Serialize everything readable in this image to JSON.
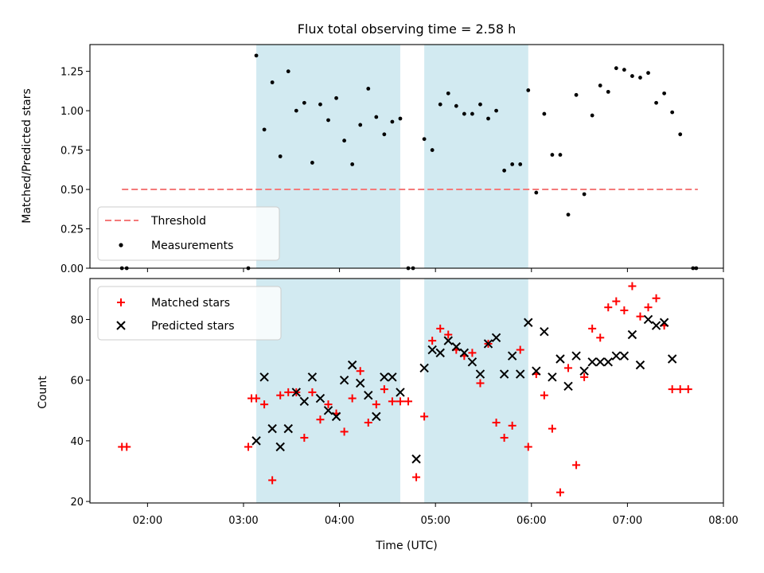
{
  "chart_data": [
    {
      "type": "scatter",
      "title": "Flux total observing time = 2.58 h",
      "xlabel": "",
      "ylabel": "Matched/Predicted stars",
      "xlim": [
        "01:24",
        "08:00"
      ],
      "ylim": [
        0,
        1.42
      ],
      "yticks": [
        0.0,
        0.25,
        0.5,
        0.75,
        1.0,
        1.25
      ],
      "ytick_labels": [
        "0.00",
        "0.25",
        "0.50",
        "0.75",
        "1.00",
        "1.25"
      ],
      "legend_position": "lower-left",
      "shaded_intervals": [
        [
          "03:08",
          "04:38"
        ],
        [
          "04:53",
          "05:58"
        ]
      ],
      "threshold": {
        "name": "Threshold",
        "y": 0.5,
        "x_range": [
          "01:44",
          "07:44"
        ],
        "color": "#f47a7a",
        "style": "dashed"
      },
      "series": [
        {
          "name": "Measurements",
          "color": "#000000",
          "marker": "dot",
          "points": [
            [
              "01:44",
              0.0
            ],
            [
              "01:47",
              0.0
            ],
            [
              "03:03",
              0.0
            ],
            [
              "03:08",
              1.35
            ],
            [
              "03:13",
              0.88
            ],
            [
              "03:18",
              1.18
            ],
            [
              "03:23",
              0.71
            ],
            [
              "03:28",
              1.25
            ],
            [
              "03:33",
              1.0
            ],
            [
              "03:38",
              1.05
            ],
            [
              "03:43",
              0.67
            ],
            [
              "03:48",
              1.04
            ],
            [
              "03:53",
              0.94
            ],
            [
              "03:58",
              1.08
            ],
            [
              "04:03",
              0.81
            ],
            [
              "04:08",
              0.66
            ],
            [
              "04:13",
              0.91
            ],
            [
              "04:18",
              1.14
            ],
            [
              "04:23",
              0.96
            ],
            [
              "04:28",
              0.85
            ],
            [
              "04:33",
              0.93
            ],
            [
              "04:38",
              0.95
            ],
            [
              "04:43",
              0.0
            ],
            [
              "04:46",
              0.0
            ],
            [
              "04:53",
              0.82
            ],
            [
              "04:58",
              0.75
            ],
            [
              "05:03",
              1.04
            ],
            [
              "05:08",
              1.11
            ],
            [
              "05:13",
              1.03
            ],
            [
              "05:18",
              0.98
            ],
            [
              "05:23",
              0.98
            ],
            [
              "05:28",
              1.04
            ],
            [
              "05:33",
              0.95
            ],
            [
              "05:38",
              1.0
            ],
            [
              "05:43",
              0.62
            ],
            [
              "05:48",
              0.66
            ],
            [
              "05:53",
              0.66
            ],
            [
              "05:58",
              1.13
            ],
            [
              "06:03",
              0.48
            ],
            [
              "06:08",
              0.98
            ],
            [
              "06:13",
              0.72
            ],
            [
              "06:18",
              0.72
            ],
            [
              "06:23",
              0.34
            ],
            [
              "06:28",
              1.1
            ],
            [
              "06:33",
              0.47
            ],
            [
              "06:38",
              0.97
            ],
            [
              "06:43",
              1.16
            ],
            [
              "06:48",
              1.12
            ],
            [
              "06:53",
              1.27
            ],
            [
              "06:58",
              1.26
            ],
            [
              "07:03",
              1.22
            ],
            [
              "07:08",
              1.21
            ],
            [
              "07:13",
              1.24
            ],
            [
              "07:18",
              1.05
            ],
            [
              "07:23",
              1.11
            ],
            [
              "07:28",
              0.99
            ],
            [
              "07:33",
              0.85
            ],
            [
              "07:41",
              0.0
            ],
            [
              "07:43",
              0.0
            ]
          ]
        }
      ]
    },
    {
      "type": "scatter",
      "title": "",
      "xlabel": "Time (UTC)",
      "ylabel": "Count",
      "xlim": [
        "01:24",
        "08:00"
      ],
      "ylim": [
        19.5,
        93.5
      ],
      "yticks": [
        20,
        40,
        60,
        80
      ],
      "ytick_labels": [
        "20",
        "40",
        "60",
        "80"
      ],
      "xticks": [
        "02:00",
        "03:00",
        "04:00",
        "05:00",
        "06:00",
        "07:00",
        "08:00"
      ],
      "xtick_labels": [
        "02:00",
        "03:00",
        "04:00",
        "05:00",
        "06:00",
        "07:00",
        "08:00"
      ],
      "legend_position": "upper-left",
      "shaded_intervals": [
        [
          "03:08",
          "04:38"
        ],
        [
          "04:53",
          "05:58"
        ]
      ],
      "series": [
        {
          "name": "Matched stars",
          "color": "#ff0000",
          "marker": "plus",
          "points": [
            [
              "01:44",
              38
            ],
            [
              "01:47",
              38
            ],
            [
              "03:03",
              38
            ],
            [
              "03:05",
              54
            ],
            [
              "03:08",
              54
            ],
            [
              "03:13",
              52
            ],
            [
              "03:18",
              27
            ],
            [
              "03:23",
              55
            ],
            [
              "03:28",
              56
            ],
            [
              "03:33",
              56
            ],
            [
              "03:38",
              41
            ],
            [
              "03:43",
              56
            ],
            [
              "03:48",
              47
            ],
            [
              "03:53",
              52
            ],
            [
              "03:58",
              49
            ],
            [
              "04:03",
              43
            ],
            [
              "04:08",
              54
            ],
            [
              "04:13",
              63
            ],
            [
              "04:18",
              46
            ],
            [
              "04:23",
              52
            ],
            [
              "04:28",
              57
            ],
            [
              "04:33",
              53
            ],
            [
              "04:38",
              53
            ],
            [
              "04:43",
              53
            ],
            [
              "04:48",
              28
            ],
            [
              "04:53",
              48
            ],
            [
              "04:58",
              73
            ],
            [
              "05:03",
              77
            ],
            [
              "05:08",
              75
            ],
            [
              "05:13",
              70
            ],
            [
              "05:18",
              68
            ],
            [
              "05:23",
              69
            ],
            [
              "05:28",
              59
            ],
            [
              "05:33",
              72
            ],
            [
              "05:38",
              46
            ],
            [
              "05:43",
              41
            ],
            [
              "05:48",
              45
            ],
            [
              "05:53",
              70
            ],
            [
              "05:58",
              38
            ],
            [
              "06:03",
              62
            ],
            [
              "06:08",
              55
            ],
            [
              "06:13",
              44
            ],
            [
              "06:18",
              23
            ],
            [
              "06:23",
              64
            ],
            [
              "06:28",
              32
            ],
            [
              "06:33",
              61
            ],
            [
              "06:38",
              77
            ],
            [
              "06:43",
              74
            ],
            [
              "06:48",
              84
            ],
            [
              "06:53",
              86
            ],
            [
              "06:58",
              83
            ],
            [
              "07:03",
              91
            ],
            [
              "07:08",
              81
            ],
            [
              "07:13",
              84
            ],
            [
              "07:18",
              87
            ],
            [
              "07:23",
              78
            ],
            [
              "07:28",
              57
            ],
            [
              "07:33",
              57
            ],
            [
              "07:38",
              57
            ]
          ]
        },
        {
          "name": "Predicted stars",
          "color": "#000000",
          "marker": "x",
          "points": [
            [
              "03:08",
              40
            ],
            [
              "03:13",
              61
            ],
            [
              "03:18",
              44
            ],
            [
              "03:23",
              38
            ],
            [
              "03:28",
              44
            ],
            [
              "03:33",
              56
            ],
            [
              "03:38",
              53
            ],
            [
              "03:43",
              61
            ],
            [
              "03:48",
              54
            ],
            [
              "03:53",
              50
            ],
            [
              "03:58",
              48
            ],
            [
              "04:03",
              60
            ],
            [
              "04:08",
              65
            ],
            [
              "04:13",
              59
            ],
            [
              "04:18",
              55
            ],
            [
              "04:23",
              48
            ],
            [
              "04:28",
              61
            ],
            [
              "04:33",
              61
            ],
            [
              "04:38",
              56
            ],
            [
              "04:48",
              34
            ],
            [
              "04:53",
              64
            ],
            [
              "04:58",
              70
            ],
            [
              "05:03",
              69
            ],
            [
              "05:08",
              73
            ],
            [
              "05:13",
              71
            ],
            [
              "05:18",
              69
            ],
            [
              "05:23",
              66
            ],
            [
              "05:28",
              62
            ],
            [
              "05:33",
              72
            ],
            [
              "05:38",
              74
            ],
            [
              "05:43",
              62
            ],
            [
              "05:48",
              68
            ],
            [
              "05:53",
              62
            ],
            [
              "05:58",
              79
            ],
            [
              "06:03",
              63
            ],
            [
              "06:08",
              76
            ],
            [
              "06:13",
              61
            ],
            [
              "06:18",
              67
            ],
            [
              "06:23",
              58
            ],
            [
              "06:28",
              68
            ],
            [
              "06:33",
              63
            ],
            [
              "06:38",
              66
            ],
            [
              "06:43",
              66
            ],
            [
              "06:48",
              66
            ],
            [
              "06:53",
              68
            ],
            [
              "06:58",
              68
            ],
            [
              "07:03",
              75
            ],
            [
              "07:08",
              65
            ],
            [
              "07:13",
              80
            ],
            [
              "07:18",
              78
            ],
            [
              "07:23",
              79
            ],
            [
              "07:28",
              67
            ]
          ]
        }
      ]
    }
  ],
  "colors": {
    "shade": "#add8e6",
    "threshold": "#f47a7a",
    "matched": "#ff0000",
    "predicted": "#000000",
    "measurements": "#000000"
  }
}
